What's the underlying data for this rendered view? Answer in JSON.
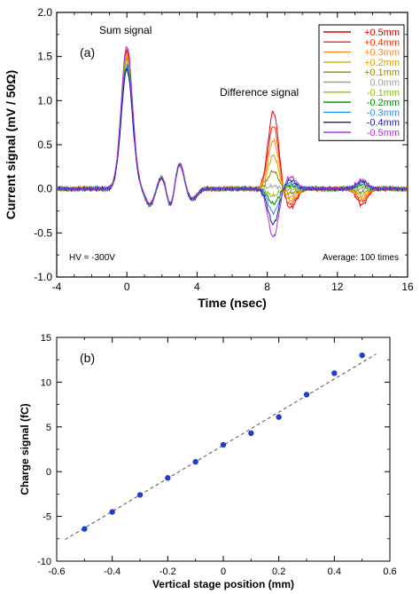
{
  "chart_data": [
    {
      "type": "line",
      "panel_label": "(a)",
      "xlabel": "Time (nsec)",
      "ylabel": "Current signal (mV / 50Ω)",
      "xlim": [
        -4,
        16
      ],
      "ylim": [
        -1.0,
        2.0
      ],
      "xticks": [
        -4,
        0,
        4,
        8,
        12,
        16
      ],
      "yticks": [
        -1.0,
        -0.5,
        0.0,
        0.5,
        1.0,
        1.5,
        2.0
      ],
      "grid": false,
      "legend": "top-right",
      "annotations": [
        {
          "text": "Sum  signal"
        },
        {
          "text": "Difference signal"
        },
        {
          "text": "HV = -300V"
        },
        {
          "text": "Average: 100 times"
        }
      ],
      "series": [
        {
          "name": "+0.5mm",
          "color": "#e00000",
          "sum_peak": 1.58,
          "diff_peak": 0.88,
          "tail_amp": -0.18
        },
        {
          "name": "+0.4mm",
          "color": "#ff2a00",
          "sum_peak": 1.55,
          "diff_peak": 0.72,
          "tail_amp": -0.14
        },
        {
          "name": "+0.3mm",
          "color": "#ff8c1a",
          "sum_peak": 1.52,
          "diff_peak": 0.55,
          "tail_amp": -0.11
        },
        {
          "name": "+0.2mm",
          "color": "#e0a000",
          "sum_peak": 1.5,
          "diff_peak": 0.38,
          "tail_amp": -0.08
        },
        {
          "name": "+0.1mm",
          "color": "#8c8c00",
          "sum_peak": 1.47,
          "diff_peak": 0.2,
          "tail_amp": -0.04
        },
        {
          "name": "0.0mm",
          "color": "#a0a0a0",
          "sum_peak": 1.45,
          "diff_peak": 0.03,
          "tail_amp": 0.0
        },
        {
          "name": "-0.1mm",
          "color": "#8cc000",
          "sum_peak": 1.43,
          "diff_peak": -0.08,
          "tail_amp": 0.03
        },
        {
          "name": "-0.2mm",
          "color": "#008c00",
          "sum_peak": 1.4,
          "diff_peak": -0.17,
          "tail_amp": 0.05
        },
        {
          "name": "-0.3mm",
          "color": "#1e90ff",
          "sum_peak": 1.38,
          "diff_peak": -0.27,
          "tail_amp": 0.07
        },
        {
          "name": "-0.4mm",
          "color": "#1a1aa0",
          "sum_peak": 1.35,
          "diff_peak": -0.4,
          "tail_amp": 0.09
        },
        {
          "name": "-0.5mm",
          "color": "#b030e0",
          "sum_peak": 1.62,
          "diff_peak": -0.55,
          "tail_amp": 0.1
        }
      ]
    },
    {
      "type": "scatter",
      "panel_label": "(b)",
      "xlabel": "Vertical stage position (mm)",
      "ylabel": "Charge signal (fC)",
      "xlim": [
        -0.6,
        0.6
      ],
      "ylim": [
        -10,
        15
      ],
      "xticks": [
        -0.6,
        -0.4,
        -0.2,
        0,
        0.2,
        0.4,
        0.6
      ],
      "yticks": [
        -10,
        -5,
        0,
        5,
        10,
        15
      ],
      "grid": false,
      "marker_color": "#1c3fd0",
      "x": [
        -0.5,
        -0.4,
        -0.3,
        -0.2,
        -0.1,
        0.0,
        0.1,
        0.2,
        0.3,
        0.4,
        0.5
      ],
      "y": [
        -6.4,
        -4.5,
        -2.6,
        -0.7,
        1.1,
        3.0,
        4.3,
        6.1,
        8.6,
        11.0,
        13.0
      ],
      "fit_line": {
        "style": "dashed",
        "color": "#555555",
        "slope": 18.5,
        "intercept": 2.95
      }
    }
  ]
}
